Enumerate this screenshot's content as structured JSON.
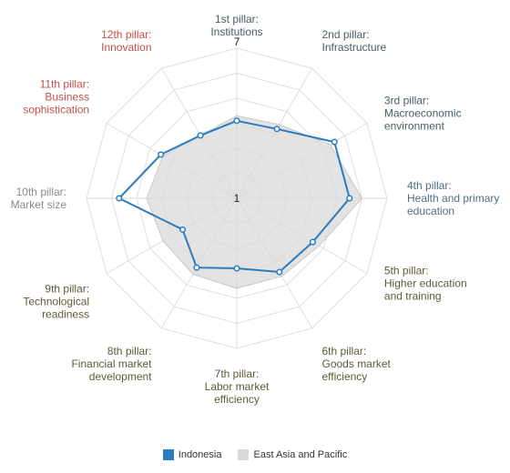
{
  "chart_data": {
    "type": "radar",
    "axes": [
      {
        "lines": [
          "1st pillar:",
          "Institutions"
        ],
        "color": "#4a5a66"
      },
      {
        "lines": [
          "2nd pillar:",
          "Infrastructure"
        ],
        "color": "#4a5a66"
      },
      {
        "lines": [
          "3rd pillar:",
          "Macroeconomic",
          "environment"
        ],
        "color": "#4a5a66"
      },
      {
        "lines": [
          "4th pillar:",
          "Health and primary",
          "education"
        ],
        "color": "#4f6f80"
      },
      {
        "lines": [
          "5th pillar:",
          "Higher education",
          "and training"
        ],
        "color": "#5e5a36"
      },
      {
        "lines": [
          "6th pillar:",
          "Goods market",
          "efficiency"
        ],
        "color": "#5e5a36"
      },
      {
        "lines": [
          "7th pillar:",
          "Labor market",
          "efficiency"
        ],
        "color": "#5e5a36"
      },
      {
        "lines": [
          "8th pillar:",
          "Financial market",
          "development"
        ],
        "color": "#5e5a36"
      },
      {
        "lines": [
          "9th pillar:",
          "Technological",
          "readiness"
        ],
        "color": "#5e5a36"
      },
      {
        "lines": [
          "10th pillar:",
          "Market size"
        ],
        "color": "#8a8a8a"
      },
      {
        "lines": [
          "11th pillar:",
          "Business",
          "sophistication"
        ],
        "color": "#c0504d"
      },
      {
        "lines": [
          "12th pillar:",
          "Innovation"
        ],
        "color": "#c0504d"
      }
    ],
    "rmin": 1,
    "rmax": 7,
    "ticks": [
      "1",
      "7"
    ],
    "series": [
      {
        "name": "Indonesia",
        "color": "#2a7bbf",
        "values": [
          4.1,
          4.2,
          5.5,
          5.5,
          4.5,
          4.4,
          3.8,
          4.2,
          3.5,
          5.7,
          4.5,
          3.9
        ]
      },
      {
        "name": "East Asia and Pacific",
        "color": "#d9d9d9",
        "values": [
          4.3,
          4.4,
          5.3,
          6.0,
          4.8,
          4.6,
          4.6,
          4.5,
          4.4,
          4.6,
          4.4,
          3.9
        ]
      }
    ]
  },
  "legend": [
    {
      "label": "Indonesia",
      "color": "#2a7bbf"
    },
    {
      "label": "East Asia and Pacific",
      "color": "#d9d9d9"
    }
  ]
}
